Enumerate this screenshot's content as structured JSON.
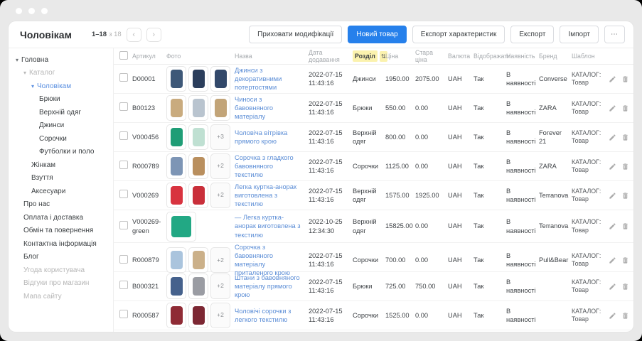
{
  "colors": {
    "primary_blue": "#2680eb",
    "link_blue": "#5b8dd6",
    "sort_highlight_yellow": "#fbf2ae",
    "window_gray": "#e9e9e9"
  },
  "window": {
    "controls": [
      "close",
      "minimize",
      "maximize"
    ]
  },
  "header": {
    "title": "Чоловікам",
    "pagination": {
      "range": "1–18",
      "of": "з 18",
      "prev_icon": "‹",
      "next_icon": "›"
    },
    "buttons": [
      {
        "label": "Приховати модифікації",
        "style": "default"
      },
      {
        "label": "Новий товар",
        "style": "primary"
      },
      {
        "label": "Експорт характеристик",
        "style": "default"
      },
      {
        "label": "Експорт",
        "style": "default"
      },
      {
        "label": "Імпорт",
        "style": "default"
      },
      {
        "label": "⋯",
        "style": "more"
      }
    ]
  },
  "sidebar": {
    "arrow_icon": "▾",
    "items": [
      {
        "label": "Головна",
        "level": 0,
        "expandable": true,
        "state": "normal"
      },
      {
        "label": "Каталог",
        "level": 1,
        "expandable": true,
        "state": "muted"
      },
      {
        "label": "Чоловікам",
        "level": 2,
        "expandable": true,
        "state": "active"
      },
      {
        "label": "Брюки",
        "level": 3,
        "expandable": false,
        "state": "normal"
      },
      {
        "label": "Верхній одяг",
        "level": 3,
        "expandable": false,
        "state": "normal"
      },
      {
        "label": "Джинси",
        "level": 3,
        "expandable": false,
        "state": "normal"
      },
      {
        "label": "Сорочки",
        "level": 3,
        "expandable": false,
        "state": "normal"
      },
      {
        "label": "Футболки и поло",
        "level": 3,
        "expandable": false,
        "state": "normal"
      },
      {
        "label": "Жінкам",
        "level": 2,
        "expandable": false,
        "state": "normal"
      },
      {
        "label": "Взуття",
        "level": 2,
        "expandable": false,
        "state": "normal"
      },
      {
        "label": "Аксесуари",
        "level": 2,
        "expandable": false,
        "state": "normal"
      },
      {
        "label": "Про нас",
        "level": 1,
        "expandable": false,
        "state": "normal"
      },
      {
        "label": "Оплата і доставка",
        "level": 1,
        "expandable": false,
        "state": "normal"
      },
      {
        "label": "Обмін та повернення",
        "level": 1,
        "expandable": false,
        "state": "normal"
      },
      {
        "label": "Контактна інформація",
        "level": 1,
        "expandable": false,
        "state": "normal"
      },
      {
        "label": "Блог",
        "level": 1,
        "expandable": false,
        "state": "normal"
      },
      {
        "label": "Угода користувача",
        "level": 1,
        "expandable": false,
        "state": "muted"
      },
      {
        "label": "Відгуки про магазин",
        "level": 1,
        "expandable": false,
        "state": "muted"
      },
      {
        "label": "Мапа сайту",
        "level": 1,
        "expandable": false,
        "state": "muted"
      }
    ]
  },
  "table": {
    "columns": [
      "Артикул",
      "Фото",
      "Назва",
      "Дата додавання",
      "Розділ",
      "Ціна",
      "Стара ціна",
      "Валюта",
      "Відображати",
      "Наявність",
      "Бренд",
      "Шаблон"
    ],
    "sorted_column": "Розділ",
    "sort_icon": "⇅",
    "rows": [
      {
        "sku": "D00001",
        "photos": [
          "#3d5878",
          "#2b3e5c",
          "#32486a"
        ],
        "more": "",
        "big": false,
        "name": "Джинси з декоративними потертостями",
        "date": "2022-07-15",
        "time": "11:43:16",
        "section": "Джинси",
        "price": "1950.00",
        "old_price": "2075.00",
        "currency": "UAH",
        "display": "Так",
        "availability": "В наявності",
        "brand": "Converse",
        "template": "КАТАЛОГ: Товар"
      },
      {
        "sku": "B00123",
        "photos": [
          "#c9ab7e",
          "#b9c4cf",
          "#c2a478"
        ],
        "more": "",
        "big": false,
        "name": "Чиноси з бавовняного матеріалу",
        "date": "2022-07-15",
        "time": "11:43:16",
        "section": "Брюки",
        "price": "550.00",
        "old_price": "0.00",
        "currency": "UAH",
        "display": "Так",
        "availability": "В наявності",
        "brand": "ZARA",
        "template": "КАТАЛОГ: Товар"
      },
      {
        "sku": "V000456",
        "photos": [
          "#1f9d76",
          "#bfe0d2"
        ],
        "more": "+3",
        "big": false,
        "name": "Чоловіча вітрівка прямого крою",
        "date": "2022-07-15",
        "time": "11:43:16",
        "section": "Верхній одяг",
        "price": "800.00",
        "old_price": "0.00",
        "currency": "UAH",
        "display": "Так",
        "availability": "В наявності",
        "brand": "Forever 21",
        "template": "КАТАЛОГ: Товар"
      },
      {
        "sku": "R000789",
        "photos": [
          "#7d95b5",
          "#b98f5e"
        ],
        "more": "+2",
        "big": false,
        "name": "Сорочка з гладкого бавовняного текстилю",
        "date": "2022-07-15",
        "time": "11:43:16",
        "section": "Сорочки",
        "price": "1125.00",
        "old_price": "0.00",
        "currency": "UAH",
        "display": "Так",
        "availability": "В наявності",
        "brand": "ZARA",
        "template": "КАТАЛОГ: Товар"
      },
      {
        "sku": "V000269",
        "photos": [
          "#d8333f",
          "#c92f3a"
        ],
        "more": "+2",
        "big": false,
        "name": "Легка куртка-анорак виготовлена з текстилю",
        "date": "2022-07-15",
        "time": "11:43:16",
        "section": "Верхній одяг",
        "price": "1575.00",
        "old_price": "1925.00",
        "currency": "UAH",
        "display": "Так",
        "availability": "В наявності",
        "brand": "Terranova",
        "template": "КАТАЛОГ: Товар"
      },
      {
        "sku": "V000269-green",
        "photos": [
          "#22a884"
        ],
        "more": "",
        "big": true,
        "name": "— Легка куртка-анорак виготовлена з текстилю",
        "date": "2022-10-25",
        "time": "12:34:30",
        "section": "Верхній одяг",
        "price": "15825.00",
        "old_price": "0.00",
        "currency": "UAH",
        "display": "Так",
        "availability": "В наявності",
        "brand": "Terranova",
        "template": "КАТАЛОГ: Товар"
      },
      {
        "sku": "R000879",
        "photos": [
          "#aac4dd",
          "#cbb089"
        ],
        "more": "+2",
        "big": false,
        "name": "Сорочка з бавовняного матеріалу приталеного крою",
        "date": "2022-07-15",
        "time": "11:43:16",
        "section": "Сорочки",
        "price": "700.00",
        "old_price": "0.00",
        "currency": "UAH",
        "display": "Так",
        "availability": "В наявності",
        "brand": "Pull&Bear",
        "template": "КАТАЛОГ: Товар"
      },
      {
        "sku": "B000321",
        "photos": [
          "#45618c",
          "#9a9ca3"
        ],
        "more": "+2",
        "big": false,
        "name": "Штани з бавовняного матеріалу прямого крою",
        "date": "2022-07-15",
        "time": "11:43:16",
        "section": "Брюки",
        "price": "725.00",
        "old_price": "750.00",
        "currency": "UAH",
        "display": "Так",
        "availability": "В наявності",
        "brand": "",
        "template": "КАТАЛОГ: Товар"
      },
      {
        "sku": "R000587",
        "photos": [
          "#8f2b35",
          "#7c2733"
        ],
        "more": "+2",
        "big": false,
        "name": "Чоловічі сорочки з легкого текстилю",
        "date": "2022-07-15",
        "time": "11:43:16",
        "section": "Сорочки",
        "price": "1525.00",
        "old_price": "0.00",
        "currency": "UAH",
        "display": "Так",
        "availability": "В наявності",
        "brand": "",
        "template": "КАТАЛОГ: Товар"
      }
    ]
  }
}
